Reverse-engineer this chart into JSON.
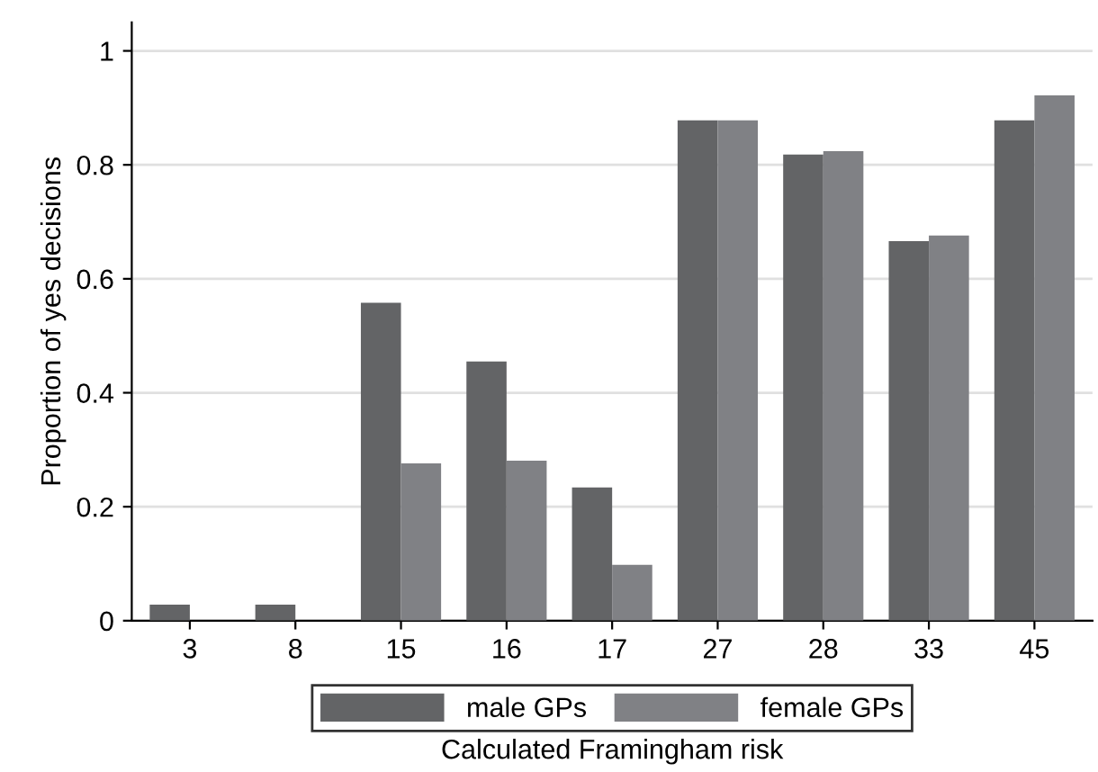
{
  "chart_data": {
    "type": "bar",
    "xlabel": "Calculated Framingham risk",
    "ylabel": "Proportion of yes decisions",
    "categories": [
      "3",
      "8",
      "15",
      "16",
      "17",
      "27",
      "28",
      "33",
      "45"
    ],
    "series": [
      {
        "name": "male GPs",
        "color": "#636466",
        "values": [
          0.028,
          0.028,
          0.558,
          0.455,
          0.234,
          0.878,
          0.818,
          0.666,
          0.878
        ]
      },
      {
        "name": "female GPs",
        "color": "#808185",
        "values": [
          0,
          0,
          0.276,
          0.281,
          0.098,
          0.878,
          0.824,
          0.676,
          0.922
        ]
      }
    ],
    "ylim": [
      0,
      1.05
    ],
    "yticks": [
      0,
      0.2,
      0.4,
      0.6,
      0.8,
      1
    ],
    "grid": "y",
    "legend": "bottom"
  }
}
